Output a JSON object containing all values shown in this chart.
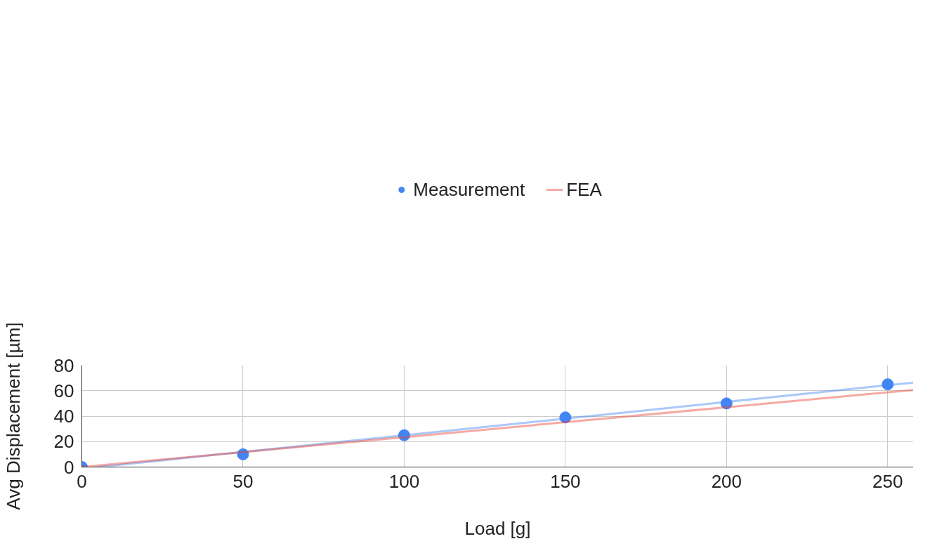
{
  "chart_data": {
    "type": "scatter",
    "xlabel": "Load [g]",
    "ylabel": "Avg Displacement [µm]",
    "xlim": [
      0,
      258
    ],
    "ylim": [
      0,
      80
    ],
    "xticks": [
      0,
      50,
      100,
      150,
      200,
      250
    ],
    "yticks": [
      0,
      20,
      40,
      60,
      80
    ],
    "grid": true,
    "legend": "top",
    "series": [
      {
        "name": "Measurement",
        "marker": "circle",
        "color": "#4285f4",
        "x": [
          0,
          50,
          100,
          150,
          200,
          250
        ],
        "values": [
          0,
          10,
          25,
          39,
          50,
          65
        ]
      },
      {
        "type": "line",
        "color": "#4285f4",
        "x": [
          4.9,
          258
        ],
        "values": [
          0,
          66.4
        ]
      },
      {
        "name": "FEA",
        "type": "line",
        "color": "#ea4335",
        "x": [
          0,
          258
        ],
        "values": [
          0,
          60.6
        ]
      }
    ]
  }
}
